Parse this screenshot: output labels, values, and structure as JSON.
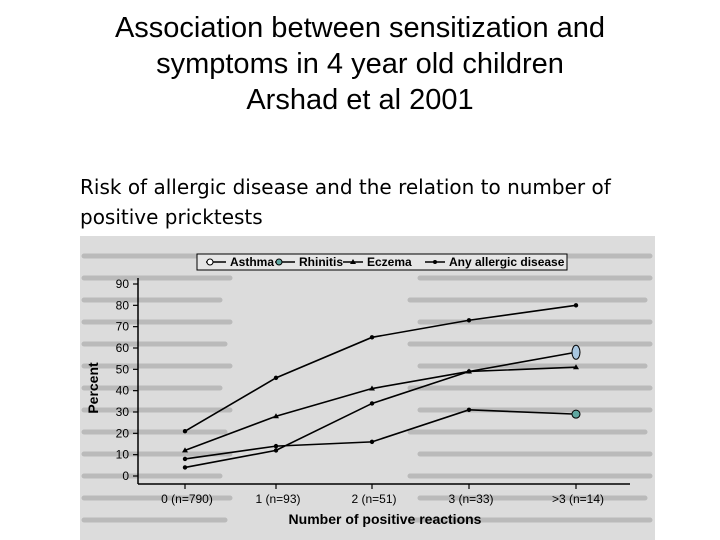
{
  "slide": {
    "title_lines": [
      "Association between sensitization and",
      "symptoms in 4 year old children",
      "Arshad et al 2001"
    ],
    "subtitle_lines": [
      "Risk of allergic disease and the relation to number of",
      "positive pricktests"
    ]
  },
  "chart_data": {
    "type": "line",
    "categories": [
      "0 (n=790)",
      "1 (n=93)",
      "2 (n=51)",
      "3 (n=33)",
      ">3 (n=14)"
    ],
    "series": [
      {
        "name": "Asthma",
        "values": [
          4,
          12,
          34,
          49,
          58
        ],
        "marker": "open-circle",
        "color": "#000000"
      },
      {
        "name": "Rhinitis",
        "values": [
          8,
          14,
          16,
          31,
          29
        ],
        "marker": "filled-circle",
        "color": "#000000"
      },
      {
        "name": "Eczema",
        "values": [
          12,
          28,
          41,
          49,
          51
        ],
        "marker": "triangle",
        "color": "#000000"
      },
      {
        "name": "Any allergic disease",
        "values": [
          21,
          46,
          65,
          73,
          80
        ],
        "marker": "dot",
        "color": "#000000"
      }
    ],
    "xlabel": "Number of positive reactions",
    "ylabel": "Percent",
    "ylim": [
      0,
      90
    ],
    "yticks": [
      0,
      10,
      20,
      30,
      40,
      50,
      60,
      70,
      80,
      90
    ],
    "legend_position": "top",
    "grid": false,
    "highlight_colors": {
      "asthma_end": "#a9c7e0",
      "rhinitis_end": "#5fa7a0"
    }
  }
}
